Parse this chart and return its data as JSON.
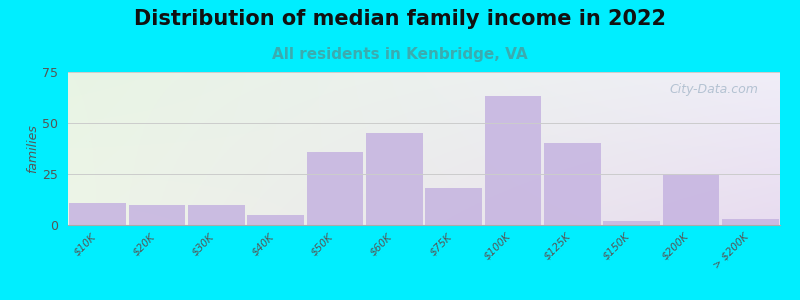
{
  "title": "Distribution of median family income in 2022",
  "subtitle": "All residents in Kenbridge, VA",
  "ylabel": "families",
  "categories": [
    "$10K",
    "$20K",
    "$30K",
    "$40K",
    "$50K",
    "$60K",
    "$75K",
    "$100K",
    "$125K",
    "$150K",
    "$200K",
    "> $200K"
  ],
  "values": [
    11,
    10,
    10,
    5,
    36,
    45,
    18,
    63,
    40,
    2,
    25,
    3
  ],
  "bar_color": "#c5b3e0",
  "background_outer": "#00eeff",
  "bg_color_topleft": "#e8f4e4",
  "bg_color_bottomright": "#e8dcf0",
  "ylim": [
    0,
    75
  ],
  "yticks": [
    0,
    25,
    50,
    75
  ],
  "title_fontsize": 15,
  "subtitle_fontsize": 11,
  "subtitle_color": "#3aacb0",
  "watermark": "City-Data.com",
  "watermark_color": "#aabbcc",
  "grid_color": "#cccccc"
}
